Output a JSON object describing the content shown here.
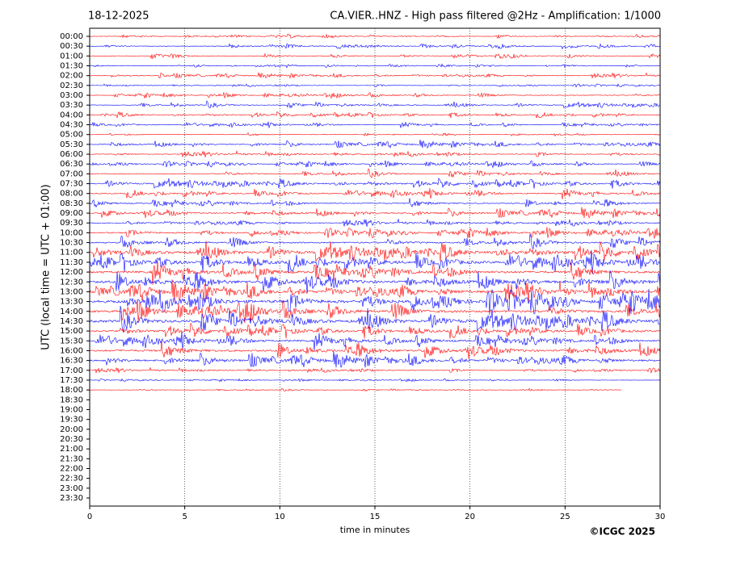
{
  "chart_data": {
    "type": "helicorder",
    "title_left": "18-12-2025",
    "title": "CA.VIER..HNZ - High pass filtered @2Hz - Amplification: 1/1000",
    "xlabel": "time in minutes",
    "ylabel": "UTC (local time = UTC + 01:00)",
    "credit": "©ICGC 2025",
    "xlim": [
      0,
      30
    ],
    "xticks": [
      0,
      5,
      10,
      15,
      20,
      25,
      30
    ],
    "grid": true,
    "categories": [
      "00:00",
      "00:30",
      "01:00",
      "01:30",
      "02:00",
      "02:30",
      "03:00",
      "03:30",
      "04:00",
      "04:30",
      "05:00",
      "05:30",
      "06:00",
      "06:30",
      "07:00",
      "07:30",
      "08:00",
      "08:30",
      "09:00",
      "09:30",
      "10:00",
      "10:30",
      "11:00",
      "11:30",
      "12:00",
      "12:30",
      "13:00",
      "13:30",
      "14:00",
      "14:30",
      "15:00",
      "15:30",
      "16:00",
      "16:30",
      "17:00",
      "17:30",
      "18:00",
      "18:30",
      "19:00",
      "19:30",
      "20:00",
      "20:30",
      "21:00",
      "21:30",
      "22:00",
      "22:30",
      "23:00",
      "23:30"
    ],
    "colors": [
      "#ff0000",
      "#0000ff"
    ],
    "series": [
      {
        "values": [
          0.08,
          0.1,
          0.1,
          0.06,
          0.1,
          0.06,
          0.1,
          0.12,
          0.12,
          0.1,
          0.06,
          0.15,
          0.12,
          0.12,
          0.15,
          0.2,
          0.18,
          0.18,
          0.2,
          0.15,
          0.2,
          0.25,
          0.4,
          0.4,
          0.4,
          0.45,
          0.4,
          0.5,
          0.4,
          0.45,
          0.3,
          0.3,
          0.35,
          0.3,
          0.1,
          0.05,
          0.05,
          null,
          null,
          null,
          null,
          null,
          null,
          null,
          null,
          null,
          null,
          null
        ]
      }
    ],
    "last_trace_end": 28
  }
}
